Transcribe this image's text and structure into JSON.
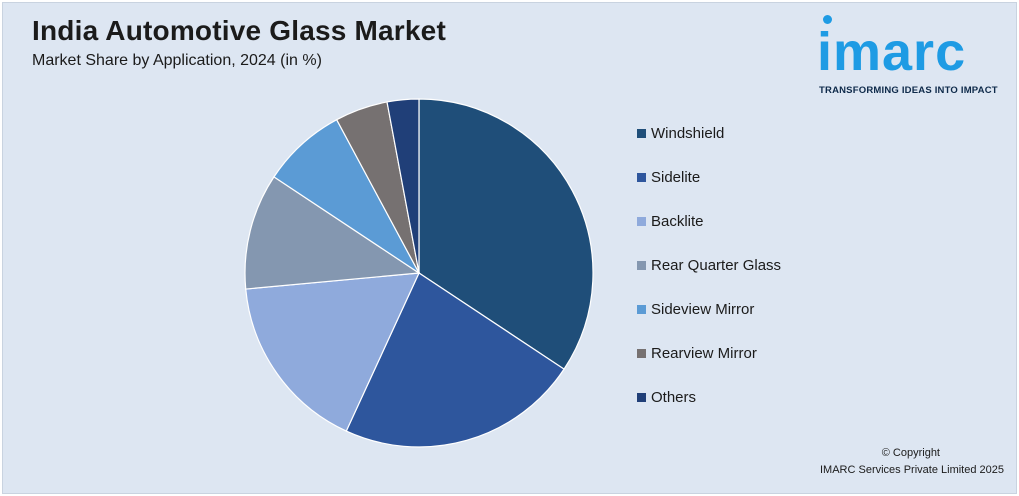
{
  "chart_data": {
    "type": "pie",
    "title": "India Automotive Glass Market",
    "subtitle": "Market Share by Application, 2024 (in %)",
    "categories": [
      "Windshield",
      "Sidelite",
      "Backlite",
      "Rear Quarter Glass",
      "Sideview Mirror",
      "Rearview Mirror",
      "Others"
    ],
    "values": [
      35,
      23,
      17,
      11,
      8,
      5,
      3
    ],
    "colors": [
      "#1f4e79",
      "#2e569d",
      "#8faadc",
      "#8497b0",
      "#5b9bd5",
      "#767171",
      "#203f78"
    ],
    "legend_position": "right"
  },
  "brand": {
    "logo_text": "imarc",
    "tagline": "TRANSFORMING IDEAS INTO IMPACT",
    "accent_color": "#1e9be4"
  },
  "footer": {
    "copyright": "© Copyright",
    "company": "IMARC Services Private Limited 2025"
  }
}
